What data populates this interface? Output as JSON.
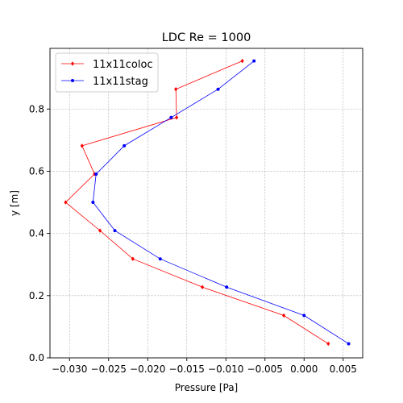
{
  "chart_data": {
    "type": "line",
    "title": "LDC Re = 1000",
    "xlabel": "Pressure [Pa]",
    "ylabel": "y [m]",
    "xlim": [
      -0.0325,
      0.0075
    ],
    "ylim": [
      0.0,
      0.995
    ],
    "xticks": [
      -0.03,
      -0.025,
      -0.02,
      -0.015,
      -0.01,
      -0.005,
      0.0,
      0.005
    ],
    "xtick_labels": [
      "−0.030",
      "−0.025",
      "−0.020",
      "−0.015",
      "−0.010",
      "−0.005",
      "0.000",
      "0.005"
    ],
    "yticks": [
      0.0,
      0.2,
      0.4,
      0.6,
      0.8
    ],
    "ytick_labels": [
      "0.0",
      "0.2",
      "0.4",
      "0.6",
      "0.8"
    ],
    "grid": true,
    "legend_position": "top-left",
    "series": [
      {
        "name": "11x11coloc",
        "color": "#ff0000",
        "marker": "diamond",
        "x": [
          0.0031,
          -0.0026,
          -0.013,
          -0.0219,
          -0.0261,
          -0.0305,
          -0.0268,
          -0.0284,
          -0.0163,
          -0.0164,
          -0.0079
        ],
        "y": [
          0.0455,
          0.1364,
          0.2273,
          0.3182,
          0.4091,
          0.5,
          0.5909,
          0.6818,
          0.7727,
          0.8636,
          0.9545
        ]
      },
      {
        "name": "11x11stag",
        "color": "#0000ff",
        "marker": "circle",
        "x": [
          0.0057,
          0.0,
          -0.0099,
          -0.0184,
          -0.0242,
          -0.027,
          -0.0266,
          -0.023,
          -0.017,
          -0.011,
          -0.0064
        ],
        "y": [
          0.0455,
          0.1364,
          0.2273,
          0.3182,
          0.4091,
          0.5,
          0.5909,
          0.6818,
          0.7727,
          0.8636,
          0.9545
        ]
      }
    ]
  }
}
